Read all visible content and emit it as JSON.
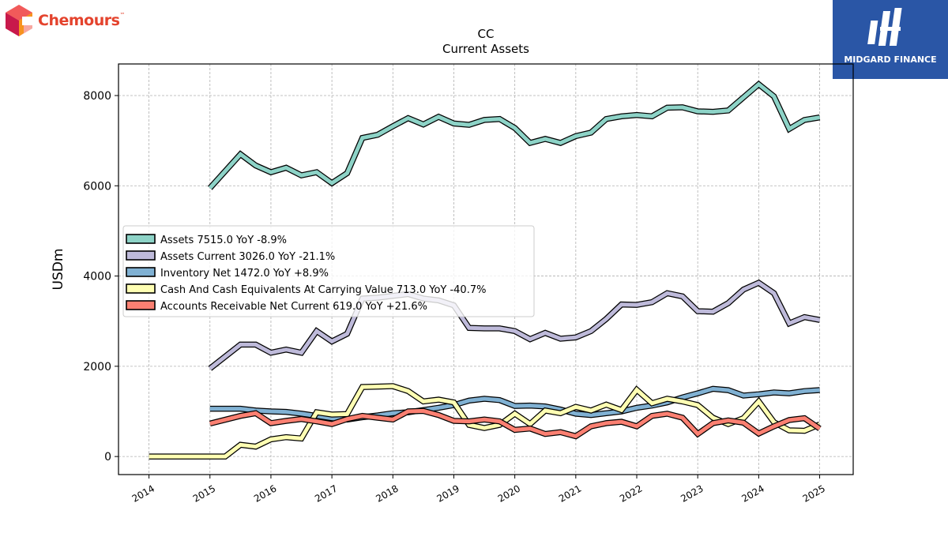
{
  "logos": {
    "left": "Chemours",
    "right": "MIDGARD FINANCE"
  },
  "chart_data": {
    "type": "line",
    "title": "CC",
    "subtitle": "Current  Assets",
    "ylabel": "USDm",
    "xlabel": "",
    "xlim": [
      2013.5,
      2025.55
    ],
    "ylim": [
      -400,
      8700
    ],
    "yticks": [
      0,
      2000,
      4000,
      6000,
      8000
    ],
    "xticks": [
      2014,
      2015,
      2016,
      2017,
      2018,
      2019,
      2020,
      2021,
      2022,
      2023,
      2024,
      2025
    ],
    "grid": true,
    "legend_position": "center-left",
    "series": [
      {
        "name": "Assets",
        "legend": "Assets  7515.0 YoY -8.9%",
        "color": "#8dd3c7",
        "x": [
          2015.0,
          2015.5,
          2015.75,
          2016.0,
          2016.25,
          2016.5,
          2016.75,
          2017.0,
          2017.25,
          2017.5,
          2017.75,
          2018.0,
          2018.25,
          2018.5,
          2018.75,
          2019.0,
          2019.25,
          2019.5,
          2019.75,
          2020.0,
          2020.25,
          2020.5,
          2020.75,
          2021.0,
          2021.25,
          2021.5,
          2021.75,
          2022.0,
          2022.25,
          2022.5,
          2022.75,
          2023.0,
          2023.25,
          2023.5,
          2023.75,
          2024.0,
          2024.25,
          2024.5,
          2024.75,
          2025.0
        ],
        "y": [
          5950,
          6700,
          6450,
          6300,
          6400,
          6230,
          6300,
          6060,
          6280,
          7060,
          7130,
          7320,
          7500,
          7360,
          7530,
          7380,
          7350,
          7460,
          7480,
          7280,
          6950,
          7040,
          6950,
          7100,
          7180,
          7480,
          7540,
          7570,
          7540,
          7730,
          7740,
          7650,
          7640,
          7670,
          7960,
          8250,
          7980,
          7260,
          7460,
          7515
        ]
      },
      {
        "name": "Assets Current",
        "legend": "Assets Current  3026.0 YoY -21.1%",
        "color": "#bebada",
        "x": [
          2015.0,
          2015.5,
          2015.75,
          2016.0,
          2016.25,
          2016.5,
          2016.75,
          2017.0,
          2017.25,
          2017.5,
          2017.75,
          2018.0,
          2018.25,
          2018.5,
          2018.75,
          2019.0,
          2019.25,
          2019.5,
          2019.75,
          2020.0,
          2020.25,
          2020.5,
          2020.75,
          2021.0,
          2021.25,
          2021.5,
          2021.75,
          2022.0,
          2022.25,
          2022.5,
          2022.75,
          2023.0,
          2023.25,
          2023.5,
          2023.75,
          2024.0,
          2024.25,
          2024.5,
          2024.75,
          2025.0
        ],
        "y": [
          1950,
          2480,
          2480,
          2300,
          2370,
          2300,
          2780,
          2550,
          2720,
          3500,
          3520,
          3560,
          3600,
          3500,
          3460,
          3350,
          2850,
          2840,
          2840,
          2780,
          2600,
          2740,
          2610,
          2640,
          2780,
          3050,
          3370,
          3360,
          3420,
          3620,
          3550,
          3220,
          3210,
          3400,
          3700,
          3850,
          3620,
          2950,
          3090,
          3026
        ]
      },
      {
        "name": "Inventory Net",
        "legend": "Inventory Net  1472.0 YoY +8.9%",
        "color": "#80b1d3",
        "x": [
          2015.0,
          2015.5,
          2015.75,
          2016.0,
          2016.25,
          2016.5,
          2016.75,
          2017.0,
          2017.25,
          2017.5,
          2017.75,
          2018.0,
          2018.25,
          2018.5,
          2018.75,
          2019.0,
          2019.25,
          2019.5,
          2019.75,
          2020.0,
          2020.25,
          2020.5,
          2020.75,
          2021.0,
          2021.25,
          2021.5,
          2021.75,
          2022.0,
          2022.25,
          2022.5,
          2022.75,
          2023.0,
          2023.25,
          2023.5,
          2023.75,
          2024.0,
          2024.25,
          2024.5,
          2024.75,
          2025.0
        ],
        "y": [
          1060,
          1060,
          1020,
          1000,
          990,
          950,
          900,
          850,
          820,
          870,
          910,
          960,
          980,
          1030,
          1080,
          1140,
          1240,
          1280,
          1250,
          1120,
          1130,
          1110,
          1040,
          950,
          920,
          960,
          1000,
          1080,
          1130,
          1200,
          1310,
          1400,
          1500,
          1470,
          1350,
          1380,
          1420,
          1400,
          1450,
          1472
        ]
      },
      {
        "name": "Cash And Cash Equivalents At Carrying Value",
        "legend": "Cash And Cash Equivalents At Carrying Value  713.0 YoY -40.7%",
        "color": "#ffffb3",
        "x": [
          2014.0,
          2015.0,
          2015.25,
          2015.5,
          2015.75,
          2016.0,
          2016.25,
          2016.5,
          2016.75,
          2017.0,
          2017.25,
          2017.5,
          2017.75,
          2018.0,
          2018.25,
          2018.5,
          2018.75,
          2019.0,
          2019.25,
          2019.5,
          2019.75,
          2020.0,
          2020.25,
          2020.5,
          2020.75,
          2021.0,
          2021.25,
          2021.5,
          2021.75,
          2022.0,
          2022.25,
          2022.5,
          2022.75,
          2023.0,
          2023.25,
          2023.5,
          2023.75,
          2024.0,
          2024.25,
          2024.5,
          2024.75,
          2025.0
        ],
        "y": [
          0,
          0,
          0,
          260,
          220,
          380,
          430,
          400,
          980,
          930,
          940,
          1540,
          1550,
          1560,
          1450,
          1220,
          1260,
          1200,
          700,
          630,
          700,
          950,
          720,
          1020,
          960,
          1100,
          1020,
          1150,
          1030,
          1480,
          1180,
          1280,
          1220,
          1140,
          860,
          720,
          850,
          1220,
          760,
          580,
          570,
          713
        ]
      },
      {
        "name": "Accounts Receivable Net Current",
        "legend": "Accounts Receivable Net Current  619.0 YoY +21.6%",
        "color": "#fb8072",
        "x": [
          2015.0,
          2015.5,
          2015.75,
          2016.0,
          2016.25,
          2016.5,
          2016.75,
          2017.0,
          2017.25,
          2017.5,
          2017.75,
          2018.0,
          2018.25,
          2018.5,
          2018.75,
          2019.0,
          2019.25,
          2019.5,
          2019.75,
          2020.0,
          2020.25,
          2020.5,
          2020.75,
          2021.0,
          2021.25,
          2021.5,
          2021.75,
          2022.0,
          2022.25,
          2022.5,
          2022.75,
          2023.0,
          2023.25,
          2023.5,
          2023.75,
          2024.0,
          2024.25,
          2024.5,
          2024.75,
          2025.0
        ],
        "y": [
          730,
          900,
          960,
          740,
          790,
          830,
          780,
          720,
          830,
          900,
          860,
          820,
          1000,
          1010,
          920,
          790,
          780,
          820,
          780,
          590,
          620,
          500,
          540,
          450,
          670,
          740,
          770,
          670,
          900,
          950,
          860,
          500,
          740,
          800,
          750,
          510,
          670,
          810,
          850,
          619
        ]
      }
    ]
  }
}
